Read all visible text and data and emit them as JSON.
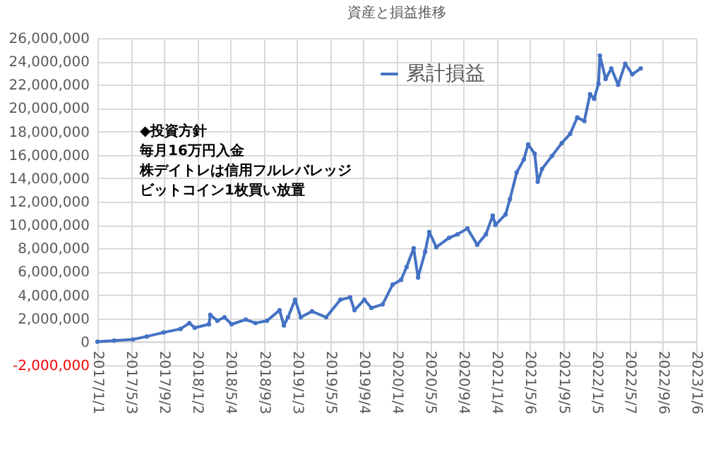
{
  "chart_data": {
    "type": "line",
    "title": "資産と損益推移",
    "annotations": [
      "◆投資方針",
      "毎月16万円入金",
      "株デイトレは信用フルレバレッジ",
      "ビットコイン1枚買い放置"
    ],
    "x": [
      "2017-01-01",
      "2017-03-04",
      "2017-05-11",
      "2017-07-01",
      "2017-09-01",
      "2017-11-02",
      "2017-12-04",
      "2017-12-24",
      "2018-02-14",
      "2018-02-19",
      "2018-03-17",
      "2018-04-12",
      "2018-05-08",
      "2018-06-29",
      "2018-08-04",
      "2018-09-15",
      "2018-10-31",
      "2018-11-16",
      "2018-12-01",
      "2018-12-27",
      "2019-01-17",
      "2019-02-27",
      "2019-04-20",
      "2019-06-11",
      "2019-07-17",
      "2019-08-02",
      "2019-09-07",
      "2019-10-03",
      "2019-11-13",
      "2019-12-20",
      "2020-01-20",
      "2020-02-09",
      "2020-03-06",
      "2020-03-22",
      "2020-04-17",
      "2020-05-02",
      "2020-05-28",
      "2020-07-14",
      "2020-08-14",
      "2020-09-19",
      "2020-10-25",
      "2020-11-26",
      "2020-12-21",
      "2020-12-31",
      "2021-02-06",
      "2021-02-22",
      "2021-03-19",
      "2021-04-14",
      "2021-04-30",
      "2021-05-24",
      "2021-06-04",
      "2021-06-20",
      "2021-07-26",
      "2021-08-31",
      "2021-10-01",
      "2021-10-27",
      "2021-11-22",
      "2021-12-13",
      "2021-12-28",
      "2022-01-13",
      "2022-01-18",
      "2022-02-08",
      "2022-03-01",
      "2022-03-26",
      "2022-04-21",
      "2022-05-17",
      "2022-06-17"
    ],
    "series": [
      {
        "name": "累計損益",
        "color": "#4472c4",
        "values": [
          0,
          100000,
          200000,
          450000,
          800000,
          1100000,
          1600000,
          1200000,
          1500000,
          2300000,
          1800000,
          2100000,
          1500000,
          1900000,
          1600000,
          1800000,
          2700000,
          1400000,
          2100000,
          3600000,
          2100000,
          2600000,
          2100000,
          3600000,
          3800000,
          2700000,
          3600000,
          2900000,
          3200000,
          4900000,
          5300000,
          6400000,
          8000000,
          5500000,
          7700000,
          9400000,
          8100000,
          8900000,
          9200000,
          9700000,
          8300000,
          9200000,
          10800000,
          10000000,
          10900000,
          12200000,
          14500000,
          15600000,
          16900000,
          16100000,
          13700000,
          14800000,
          15900000,
          17000000,
          17800000,
          19200000,
          18900000,
          21200000,
          20800000,
          22100000,
          24500000,
          22500000,
          23400000,
          22000000,
          23800000,
          22900000,
          23400000
        ]
      }
    ],
    "xlim": [
      "2017-01-01",
      "2023-01-06"
    ],
    "xticks": [
      {
        "value": "2017-01-01",
        "label": "2017/1/1"
      },
      {
        "value": "2017-05-03",
        "label": "2017/5/3"
      },
      {
        "value": "2017-09-02",
        "label": "2017/9/2"
      },
      {
        "value": "2018-01-02",
        "label": "2018/1/2"
      },
      {
        "value": "2018-05-04",
        "label": "2018/5/4"
      },
      {
        "value": "2018-09-03",
        "label": "2018/9/3"
      },
      {
        "value": "2019-01-03",
        "label": "2019/1/3"
      },
      {
        "value": "2019-05-05",
        "label": "2019/5/5"
      },
      {
        "value": "2019-09-04",
        "label": "2019/9/4"
      },
      {
        "value": "2020-01-04",
        "label": "2020/1/4"
      },
      {
        "value": "2020-05-05",
        "label": "2020/5/5"
      },
      {
        "value": "2020-09-04",
        "label": "2020/9/4"
      },
      {
        "value": "2021-01-04",
        "label": "2021/1/4"
      },
      {
        "value": "2021-05-06",
        "label": "2021/5/6"
      },
      {
        "value": "2021-09-05",
        "label": "2021/9/5"
      },
      {
        "value": "2022-01-05",
        "label": "2022/1/5"
      },
      {
        "value": "2022-05-07",
        "label": "2022/5/7"
      },
      {
        "value": "2022-09-06",
        "label": "2022/9/6"
      },
      {
        "value": "2023-01-06",
        "label": "2023/1/6"
      }
    ],
    "ylim": [
      -2000000,
      26000000
    ],
    "yticks": [
      {
        "value": -2000000,
        "label": "-2,000,000"
      },
      {
        "value": 0,
        "label": "0"
      },
      {
        "value": 2000000,
        "label": "2,000,000"
      },
      {
        "value": 4000000,
        "label": "4,000,000"
      },
      {
        "value": 6000000,
        "label": "6,000,000"
      },
      {
        "value": 8000000,
        "label": "8,000,000"
      },
      {
        "value": 10000000,
        "label": "10,000,000"
      },
      {
        "value": 12000000,
        "label": "12,000,000"
      },
      {
        "value": 14000000,
        "label": "14,000,000"
      },
      {
        "value": 16000000,
        "label": "16,000,000"
      },
      {
        "value": 18000000,
        "label": "18,000,000"
      },
      {
        "value": 20000000,
        "label": "20,000,000"
      },
      {
        "value": 22000000,
        "label": "22,000,000"
      },
      {
        "value": 24000000,
        "label": "24,000,000"
      },
      {
        "value": 26000000,
        "label": "26,000,000"
      }
    ],
    "grid": true,
    "legend": "top",
    "marker": "circle",
    "line_style": "solid"
  }
}
